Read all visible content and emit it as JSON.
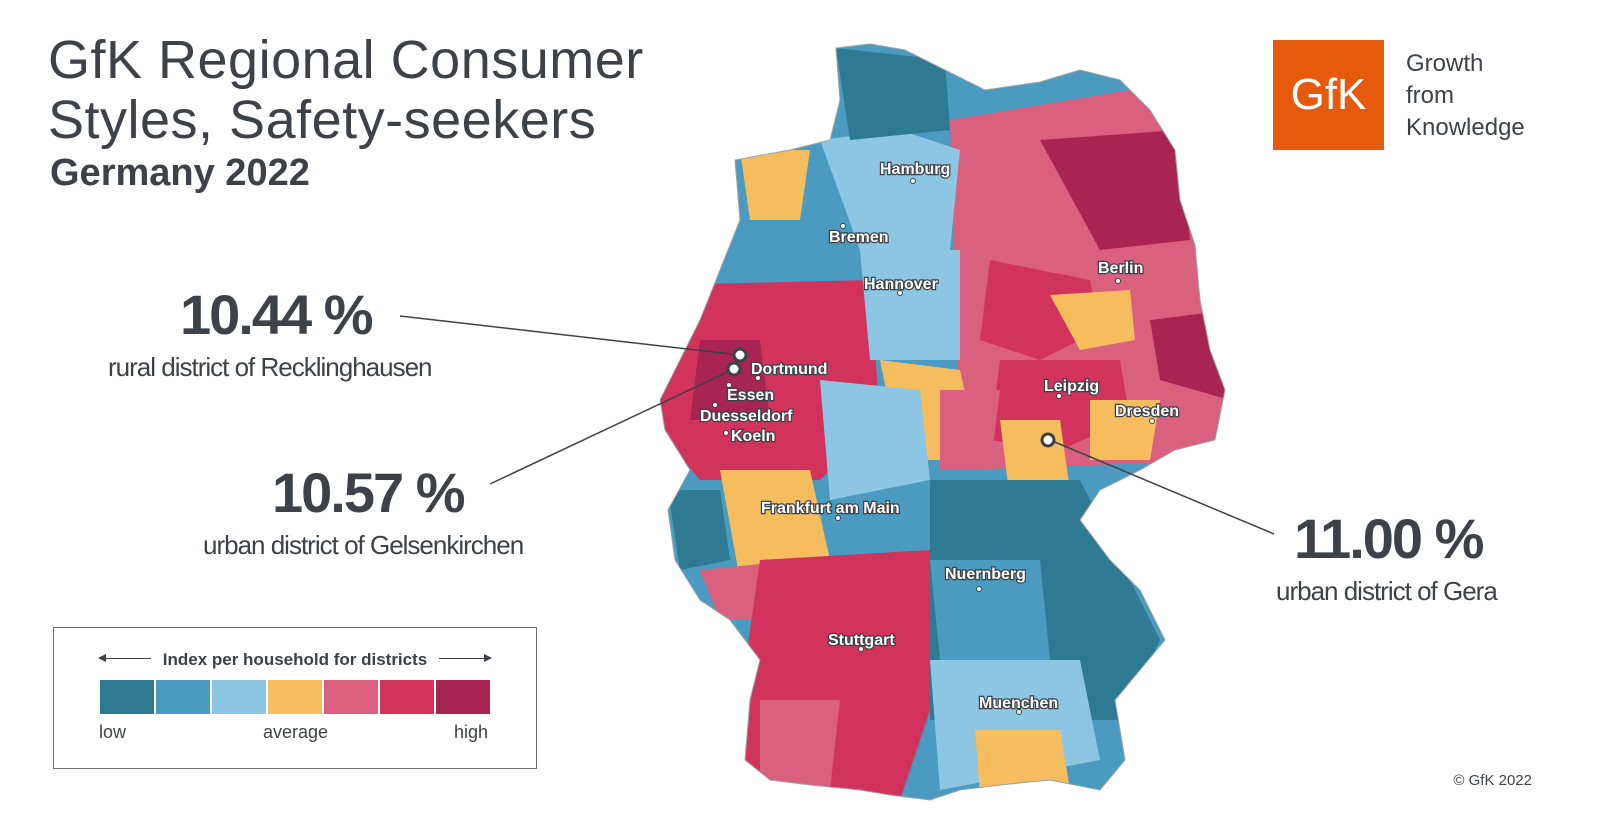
{
  "title": {
    "line1": "GfK Regional Consumer",
    "line2": "Styles, Safety-seekers",
    "subtitle": "Germany 2022"
  },
  "brand": {
    "logo_text": "GfK",
    "tagline": [
      "Growth",
      "from",
      "Knowledge"
    ],
    "logo_color": "#e55a0c"
  },
  "callouts": [
    {
      "value": "10.44 %",
      "label": "rural district of Recklinghausen"
    },
    {
      "value": "10.57 %",
      "label": "urban district of Gelsenkirchen"
    },
    {
      "value": "11.00 %",
      "label": "urban district of Gera"
    }
  ],
  "cities": [
    "Hamburg",
    "Bremen",
    "Berlin",
    "Hannover",
    "Dortmund",
    "Essen",
    "Duesseldorf",
    "Koeln",
    "Leipzig",
    "Dresden",
    "Frankfurt am Main",
    "Nuernberg",
    "Stuttgart",
    "Muenchen"
  ],
  "legend": {
    "title": "Index per household for districts",
    "low": "low",
    "average": "average",
    "high": "high",
    "colors": [
      "#2e7a93",
      "#4a9bbf",
      "#8cc6e2",
      "#f6bd5f",
      "#d9607f",
      "#d2335d",
      "#a82453"
    ]
  },
  "copyright": "© GfK 2022"
}
